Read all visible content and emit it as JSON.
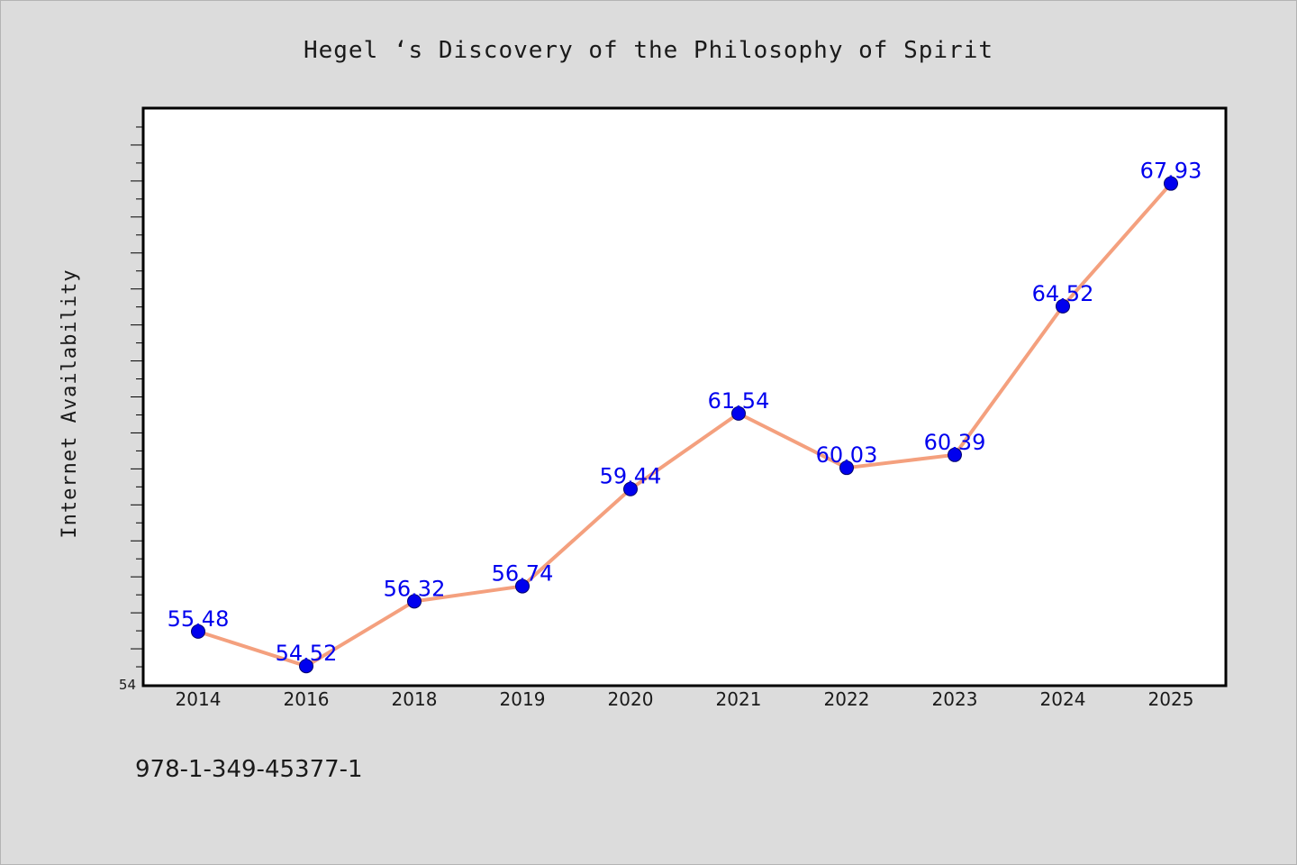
{
  "chart_data": {
    "type": "line",
    "title": "Hegel ‘s Discovery of the Philosophy of Spirit",
    "xlabel": "",
    "ylabel": "Internet Availability",
    "categories": [
      "2014",
      "2016",
      "2018",
      "2019",
      "2020",
      "2021",
      "2022",
      "2023",
      "2024",
      "2025"
    ],
    "series": [
      {
        "values": [
          55.48,
          54.52,
          56.32,
          56.74,
          59.44,
          61.54,
          60.03,
          60.39,
          64.52,
          67.93
        ],
        "labels": [
          "55.48",
          "54.52",
          "56.32",
          "56.74",
          "59.44",
          "61.54",
          "60.03",
          "60.39",
          "64.52",
          "67.93"
        ]
      }
    ],
    "ylim": [
      54,
      70
    ],
    "yticks": [
      "54"
    ],
    "grid": false,
    "line_color": "#f4a07e",
    "marker_color": "#0000ee"
  },
  "footer": {
    "code": "978-1-349-45377-1"
  }
}
